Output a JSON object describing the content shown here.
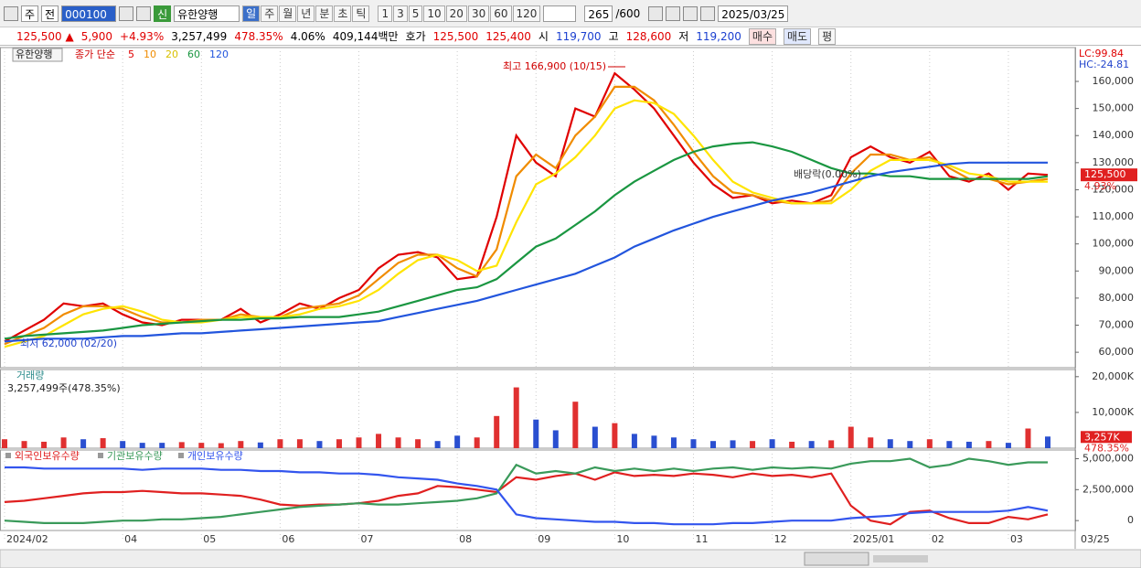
{
  "toolbar": {
    "kind": "주",
    "market": "전",
    "code": "000100",
    "badge": "신",
    "name": "유한양행",
    "periods": [
      "일",
      "주",
      "월",
      "년",
      "분",
      "초",
      "틱"
    ],
    "intervals": [
      "1",
      "3",
      "5",
      "10",
      "20",
      "30",
      "60",
      "120"
    ],
    "count": "265",
    "max": "/600",
    "date": "2025/03/25"
  },
  "quote": {
    "price": "125,500",
    "arrow": "▲",
    "change": "5,900",
    "rate": "+4.93%",
    "volume": "3,257,499",
    "volume_rate": "478.35%",
    "turnover": "4.06%",
    "amount": "409,144백만",
    "ask_label": "호가",
    "ask": "125,500",
    "bid": "125,400",
    "open_label": "시",
    "open": "119,700",
    "high_label": "고",
    "high": "128,600",
    "low_label": "저",
    "low": "119,200",
    "buy": "매수",
    "sell": "매도",
    "eval": "평"
  },
  "chart_data": [
    {
      "type": "line",
      "label": "유한양행",
      "legend_title": "종가 단순",
      "lc": "LC:99.84",
      "hc": "HC:-24.81",
      "last_labels": [
        "125,500",
        "4.93%"
      ],
      "annotations": [
        "최고 166,900 (10/15)",
        "최저 62,000 (02/20)",
        "배당락(0.00%)"
      ],
      "ylim": [
        54300,
        172500
      ],
      "yticks": [
        {
          "value": 60000,
          "label": "60,000"
        },
        {
          "value": 70000,
          "label": "70,000"
        },
        {
          "value": 80000,
          "label": "80,000"
        },
        {
          "value": 90000,
          "label": "90,000"
        },
        {
          "value": 100000,
          "label": "100,000"
        },
        {
          "value": 110000,
          "label": "110,000"
        },
        {
          "value": 120000,
          "label": "120,000"
        },
        {
          "value": 130000,
          "label": "130,000"
        },
        {
          "value": 140000,
          "label": "140,000"
        },
        {
          "value": 150000,
          "label": "150,000"
        },
        {
          "value": 160000,
          "label": "160,000"
        }
      ],
      "series": [
        {
          "name": "5",
          "color": "#e00000",
          "values": [
            64000,
            68000,
            72000,
            78000,
            77000,
            78000,
            74000,
            71000,
            70000,
            72000,
            72000,
            72000,
            76000,
            71000,
            74000,
            78000,
            76000,
            80000,
            83000,
            91000,
            96000,
            97000,
            95000,
            87000,
            88000,
            110000,
            140000,
            130000,
            125000,
            150000,
            147000,
            163000,
            157000,
            150000,
            140000,
            130000,
            122000,
            117000,
            118000,
            115000,
            116000,
            115000,
            118000,
            132000,
            136000,
            132000,
            130000,
            134000,
            125000,
            123000,
            126000,
            120000,
            126000,
            125500
          ]
        },
        {
          "name": "10",
          "color": "#f08c00",
          "values": [
            63000,
            66000,
            69000,
            74000,
            77000,
            77000,
            76000,
            73000,
            71000,
            71000,
            72000,
            72000,
            74000,
            73000,
            73000,
            76000,
            77000,
            78000,
            81000,
            87000,
            93000,
            96000,
            96000,
            91000,
            88000,
            98000,
            125000,
            133000,
            128000,
            140000,
            147000,
            158000,
            158000,
            153000,
            144000,
            134000,
            125000,
            119000,
            118000,
            116000,
            115000,
            115000,
            116000,
            126000,
            133000,
            133000,
            131000,
            132000,
            128000,
            124000,
            124000,
            122000,
            123000,
            124000
          ]
        },
        {
          "name": "20",
          "color": "#ffe400",
          "values": [
            62000,
            64000,
            66000,
            70000,
            74000,
            76000,
            77000,
            75000,
            72000,
            71000,
            71000,
            72000,
            73000,
            73000,
            73000,
            74000,
            76000,
            77000,
            79000,
            83000,
            89000,
            94000,
            96000,
            94000,
            90000,
            92000,
            108000,
            122000,
            126000,
            132000,
            140000,
            150000,
            153000,
            152000,
            148000,
            140000,
            131000,
            123000,
            119000,
            117000,
            115000,
            115000,
            115000,
            120000,
            127000,
            131000,
            131000,
            131000,
            129000,
            126000,
            125000,
            123000,
            123000,
            123000
          ]
        },
        {
          "name": "60",
          "color": "#1a9641",
          "values": [
            65000,
            66000,
            66500,
            67000,
            67500,
            68000,
            69000,
            70000,
            70500,
            71000,
            71500,
            72000,
            72000,
            72500,
            72500,
            73000,
            73000,
            73000,
            74000,
            75000,
            77000,
            79000,
            81000,
            83000,
            84000,
            87000,
            93000,
            99000,
            102000,
            107000,
            112000,
            118000,
            123000,
            127000,
            131000,
            134000,
            136000,
            137000,
            137500,
            136000,
            134000,
            131000,
            128000,
            126000,
            126000,
            125000,
            125000,
            124000,
            124000,
            124000,
            124000,
            124000,
            124000,
            125000
          ]
        },
        {
          "name": "120",
          "color": "#2255dd",
          "values": [
            64000,
            64500,
            65000,
            65000,
            65000,
            65500,
            66000,
            66000,
            66500,
            67000,
            67000,
            67500,
            68000,
            68500,
            69000,
            69500,
            70000,
            70500,
            71000,
            71500,
            73000,
            74500,
            76000,
            77500,
            79000,
            81000,
            83000,
            85000,
            87000,
            89000,
            92000,
            95000,
            99000,
            102000,
            105000,
            107500,
            110000,
            112000,
            114000,
            116000,
            117500,
            119000,
            121000,
            123000,
            125000,
            126500,
            127500,
            128500,
            129500,
            130000,
            130000,
            130000,
            130000,
            130000
          ]
        }
      ]
    },
    {
      "type": "bar",
      "title": "거래량",
      "subtitle": "3,257,499주(478.35%)",
      "last_labels": [
        "3,257K",
        "478.35%"
      ],
      "up_color": "#e03030",
      "down_color": "#2a4fd0",
      "ylim": [
        0,
        22000
      ],
      "yticks": [
        {
          "value": 10000,
          "label": "10,000K"
        },
        {
          "value": 20000,
          "label": "20,000K"
        }
      ],
      "values": [
        2500,
        2000,
        1800,
        3000,
        2500,
        2800,
        2000,
        1500,
        1500,
        1700,
        1500,
        1400,
        2000,
        1600,
        2500,
        2500,
        2000,
        2500,
        3000,
        4000,
        3000,
        2500,
        2000,
        3500,
        3000,
        9000,
        17000,
        8000,
        5000,
        13000,
        6000,
        7000,
        4000,
        3500,
        3000,
        2500,
        2000,
        2200,
        2000,
        2500,
        1800,
        2000,
        2200,
        6000,
        3000,
        2500,
        2000,
        2500,
        2000,
        1800,
        2000,
        1500,
        5500,
        3257
      ]
    },
    {
      "type": "line",
      "end_label": "03/25",
      "categories": [
        "2024/02",
        null,
        null,
        null,
        null,
        null,
        "04",
        null,
        null,
        null,
        "05",
        null,
        null,
        null,
        "06",
        null,
        null,
        null,
        "07",
        null,
        null,
        null,
        null,
        "08",
        null,
        null,
        null,
        "09",
        null,
        null,
        null,
        "10",
        null,
        null,
        null,
        "11",
        null,
        null,
        null,
        "12",
        null,
        null,
        null,
        "2025/01",
        null,
        null,
        null,
        "02",
        null,
        null,
        null,
        "03",
        null,
        null
      ],
      "ylim": [
        -800000,
        5700000
      ],
      "yticks": [
        0,
        {
          "value": 2500000,
          "label": "2,500,000"
        },
        {
          "value": 5000000,
          "label": "5,000,000"
        }
      ],
      "series": [
        {
          "name": "외국인보유수량",
          "color": "#e02020",
          "values": [
            1500000,
            1600000,
            1800000,
            2000000,
            2200000,
            2300000,
            2300000,
            2400000,
            2300000,
            2200000,
            2200000,
            2100000,
            2000000,
            1700000,
            1300000,
            1200000,
            1300000,
            1300000,
            1400000,
            1600000,
            2000000,
            2200000,
            2800000,
            2700000,
            2500000,
            2300000,
            3500000,
            3300000,
            3600000,
            3800000,
            3300000,
            3900000,
            3600000,
            3700000,
            3600000,
            3800000,
            3700000,
            3500000,
            3800000,
            3600000,
            3700000,
            3500000,
            3800000,
            1200000,
            0,
            -300000,
            700000,
            800000,
            200000,
            -200000,
            -200000,
            300000,
            100000,
            500000
          ]
        },
        {
          "name": "기관보유수량",
          "color": "#3a9a5a",
          "values": [
            0,
            -100000,
            -200000,
            -200000,
            -200000,
            -100000,
            0,
            0,
            100000,
            100000,
            200000,
            300000,
            500000,
            700000,
            900000,
            1100000,
            1200000,
            1300000,
            1400000,
            1300000,
            1300000,
            1400000,
            1500000,
            1600000,
            1800000,
            2200000,
            4500000,
            3800000,
            4000000,
            3800000,
            4300000,
            4000000,
            4200000,
            4000000,
            4200000,
            4000000,
            4200000,
            4300000,
            4100000,
            4300000,
            4200000,
            4300000,
            4200000,
            4600000,
            4800000,
            4800000,
            5000000,
            4300000,
            4500000,
            5000000,
            4800000,
            4500000,
            4700000,
            4700000
          ]
        },
        {
          "name": "개인보유수량",
          "color": "#3355ee",
          "values": [
            4300000,
            4300000,
            4200000,
            4200000,
            4200000,
            4200000,
            4200000,
            4100000,
            4200000,
            4200000,
            4200000,
            4100000,
            4100000,
            4000000,
            4000000,
            3900000,
            3900000,
            3800000,
            3800000,
            3700000,
            3500000,
            3400000,
            3300000,
            3000000,
            2800000,
            2500000,
            500000,
            200000,
            100000,
            0,
            -100000,
            -100000,
            -200000,
            -200000,
            -300000,
            -300000,
            -300000,
            -200000,
            -200000,
            -100000,
            0,
            0,
            0,
            200000,
            300000,
            400000,
            600000,
            700000,
            700000,
            700000,
            700000,
            800000,
            1100000,
            800000
          ]
        }
      ]
    }
  ]
}
